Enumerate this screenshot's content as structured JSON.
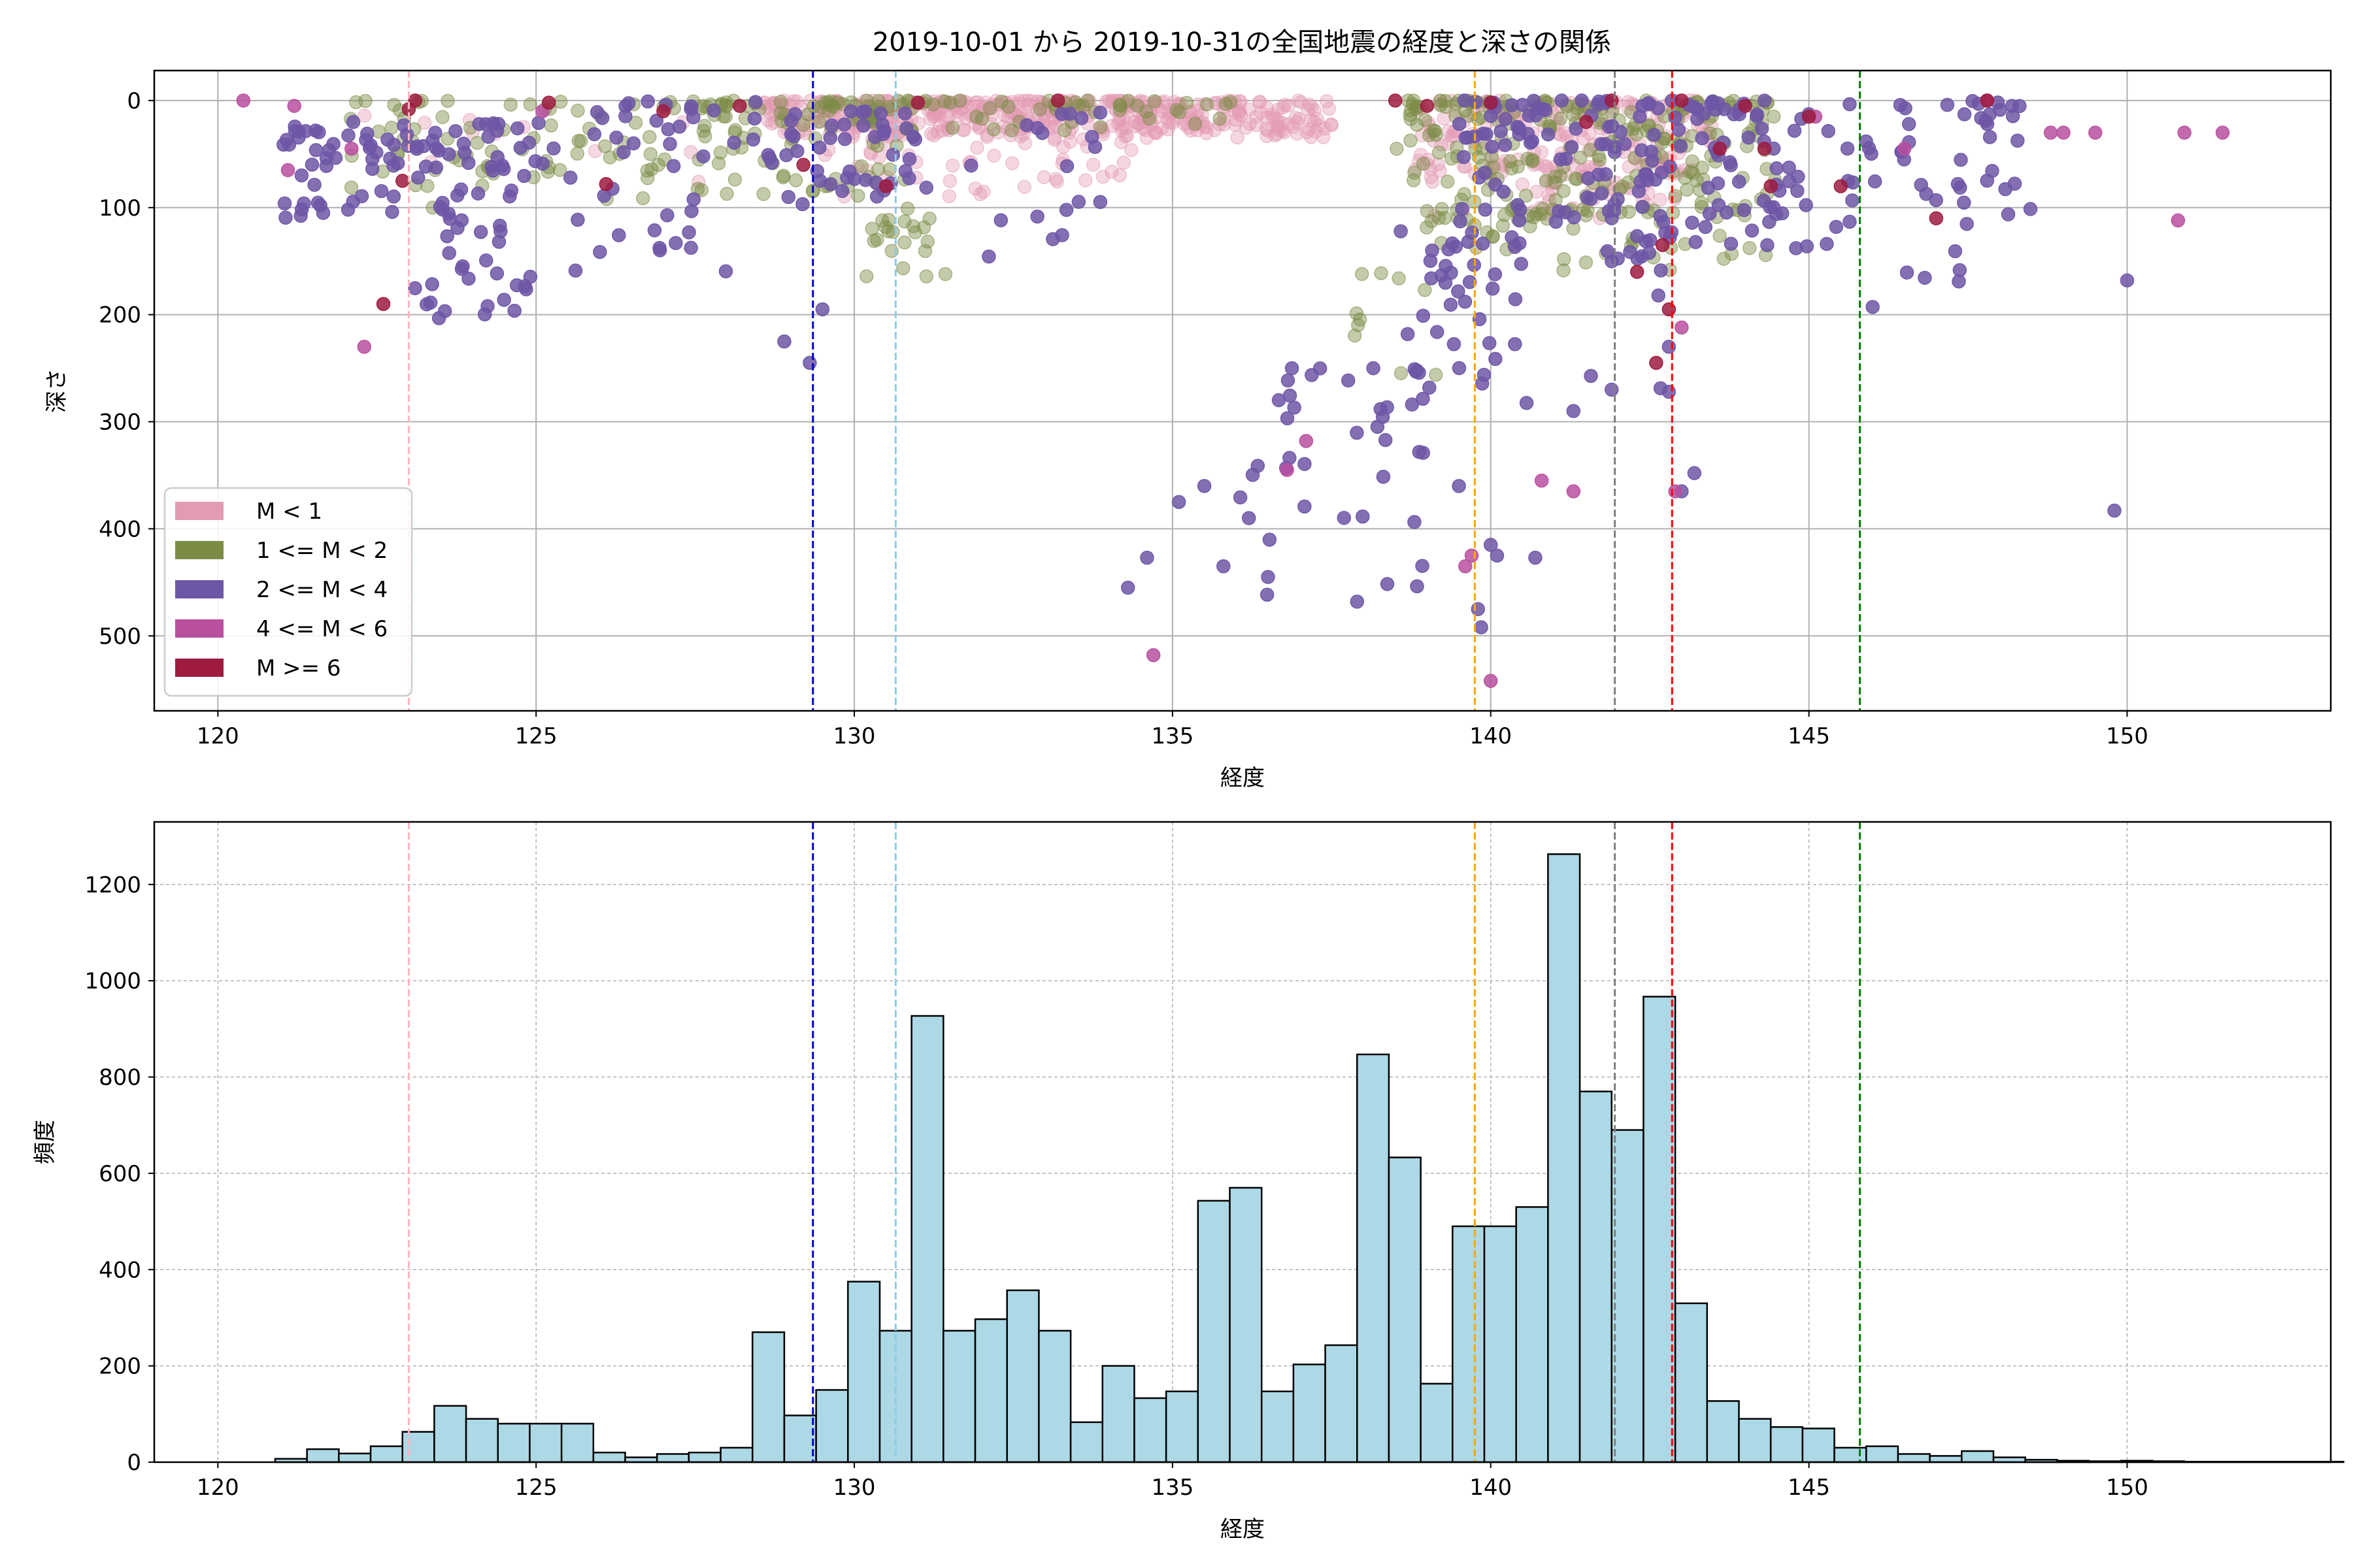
{
  "figure_title": "2019-10-01 から 2019-10-31の全国地震の経度と深さの関係",
  "colors": {
    "m_lt1": "#e39ab4",
    "m_1_2": "#7b8c45",
    "m_2_4": "#6e56a6",
    "m_4_6": "#b94f9f",
    "m_ge6": "#9e1b3f",
    "bar_fill": "#add8e6",
    "bar_edge": "#000000"
  },
  "chart_data": [
    {
      "type": "scatter",
      "title": "2019-10-01 から 2019-10-31の全国地震の経度と深さの関係",
      "xlabel": "経度",
      "ylabel": "深さ",
      "xlim": [
        119,
        153.2
      ],
      "ylim": [
        570,
        -28
      ],
      "y_inverted": true,
      "grid": true,
      "xticks": [
        120,
        125,
        130,
        135,
        140,
        145,
        150
      ],
      "yticks": [
        0,
        100,
        200,
        300,
        400,
        500
      ],
      "legend_position": "lower-left",
      "legend": [
        {
          "label": "M < 1",
          "color_key": "m_lt1"
        },
        {
          "label": "1 <= M < 2",
          "color_key": "m_1_2"
        },
        {
          "label": "2 <= M < 4",
          "color_key": "m_2_4"
        },
        {
          "label": "4 <= M < 6",
          "color_key": "m_4_6"
        },
        {
          "label": "M >= 6",
          "color_key": "m_ge6"
        }
      ],
      "vlines": [
        {
          "x": 123.0,
          "color": "#ffb6c1"
        },
        {
          "x": 129.35,
          "color": "#0000cd"
        },
        {
          "x": 130.65,
          "color": "#87ceeb"
        },
        {
          "x": 139.75,
          "color": "#ffa500"
        },
        {
          "x": 141.95,
          "color": "#808080"
        },
        {
          "x": 142.85,
          "color": "#ff0000"
        },
        {
          "x": 145.8,
          "color": "#008000"
        }
      ],
      "series": [
        {
          "name": "M < 1",
          "color_key": "m_lt1",
          "clusters": [
            {
              "x": [
                128.5,
                137.5
              ],
              "y": [
                0,
                35
              ],
              "n": 450
            },
            {
              "x": [
                129.5,
                134.5
              ],
              "y": [
                20,
                90
              ],
              "n": 70
            },
            {
              "x": [
                138.8,
                143.5
              ],
              "y": [
                0,
                70
              ],
              "n": 170
            },
            {
              "x": [
                139,
                143
              ],
              "y": [
                60,
                110
              ],
              "n": 60
            },
            {
              "x": [
                122,
                128
              ],
              "y": [
                10,
                80
              ],
              "n": 12
            }
          ],
          "points": []
        },
        {
          "name": "1 <= M < 2",
          "color_key": "m_1_2",
          "clusters": [
            {
              "x": [
                122,
                128.5
              ],
              "y": [
                0,
                100
              ],
              "n": 90
            },
            {
              "x": [
                127.5,
                131
              ],
              "y": [
                0,
                90
              ],
              "n": 90
            },
            {
              "x": [
                130.1,
                131.5
              ],
              "y": [
                100,
                170
              ],
              "n": 22
            },
            {
              "x": [
                131,
                136
              ],
              "y": [
                0,
                30
              ],
              "n": 45
            },
            {
              "x": [
                138.5,
                144.5
              ],
              "y": [
                0,
                120
              ],
              "n": 220
            },
            {
              "x": [
                139,
                144.5
              ],
              "y": [
                100,
                160
              ],
              "n": 45
            },
            {
              "x": [
                137.8,
                139.3
              ],
              "y": [
                150,
                300
              ],
              "n": 10
            }
          ],
          "points": []
        },
        {
          "name": "2 <= M < 4",
          "color_key": "m_2_4",
          "clusters": [
            {
              "x": [
                121,
                125
              ],
              "y": [
                20,
                110
              ],
              "n": 90
            },
            {
              "x": [
                123,
                125
              ],
              "y": [
                110,
                205
              ],
              "n": 28
            },
            {
              "x": [
                125,
                129
              ],
              "y": [
                0,
                160
              ],
              "n": 50
            },
            {
              "x": [
                129,
                131
              ],
              "y": [
                10,
                100
              ],
              "n": 40
            },
            {
              "x": [
                131,
                134
              ],
              "y": [
                10,
                150
              ],
              "n": 20
            },
            {
              "x": [
                136,
                139
              ],
              "y": [
                250,
                470
              ],
              "n": 40
            },
            {
              "x": [
                138.5,
                140.5
              ],
              "y": [
                120,
                270
              ],
              "n": 35
            },
            {
              "x": [
                139.5,
                145
              ],
              "y": [
                0,
                140
              ],
              "n": 170
            },
            {
              "x": [
                140.5,
                142.8
              ],
              "y": [
                140,
                290
              ],
              "n": 12
            },
            {
              "x": [
                145,
                148.5
              ],
              "y": [
                0,
                200
              ],
              "n": 55
            }
          ],
          "points": [
            [
              128.9,
              225
            ],
            [
              129.3,
              245
            ],
            [
              129.5,
              195
            ],
            [
              134.3,
              455
            ],
            [
              134.6,
              427
            ],
            [
              135.1,
              375
            ],
            [
              135.5,
              360
            ],
            [
              135.8,
              435
            ],
            [
              136.2,
              390
            ],
            [
              136.5,
              445
            ],
            [
              137.9,
              468
            ],
            [
              139.5,
              360
            ],
            [
              140.0,
              415
            ],
            [
              140.1,
              425
            ],
            [
              139.8,
              475
            ],
            [
              139.85,
              492
            ],
            [
              140.7,
              427
            ],
            [
              141.3,
              290
            ],
            [
              141.9,
              270
            ],
            [
              143.2,
              348
            ],
            [
              143.0,
              365
            ],
            [
              142.8,
              272
            ],
            [
              142.8,
              230
            ],
            [
              149.8,
              383
            ],
            [
              150.0,
              168
            ]
          ]
        },
        {
          "name": "4 <= M < 6",
          "color_key": "m_4_6",
          "clusters": [],
          "points": [
            [
              120.4,
              0
            ],
            [
              121.1,
              65
            ],
            [
              121.2,
              5
            ],
            [
              122.3,
              230
            ],
            [
              122.1,
              45
            ],
            [
              125.1,
              10
            ],
            [
              134.7,
              518
            ],
            [
              136.8,
              345
            ],
            [
              137.1,
              318
            ],
            [
              139.6,
              435
            ],
            [
              139.7,
              425
            ],
            [
              140.0,
              542
            ],
            [
              140.8,
              355
            ],
            [
              141.3,
              365
            ],
            [
              142.9,
              365
            ],
            [
              143.0,
              212
            ],
            [
              147.8,
              0
            ],
            [
              148.8,
              30
            ],
            [
              149.0,
              30
            ],
            [
              149.5,
              30
            ],
            [
              150.8,
              112
            ],
            [
              150.9,
              30
            ],
            [
              151.5,
              30
            ],
            [
              145.1,
              15
            ],
            [
              146.5,
              45
            ]
          ]
        },
        {
          "name": "M >= 6",
          "color_key": "m_ge6",
          "clusters": [],
          "points": [
            [
              122.6,
              190
            ],
            [
              122.9,
              75
            ],
            [
              123.0,
              8
            ],
            [
              123.1,
              0
            ],
            [
              125.2,
              2
            ],
            [
              126.1,
              78
            ],
            [
              127.0,
              10
            ],
            [
              128.2,
              5
            ],
            [
              129.2,
              60
            ],
            [
              130.5,
              80
            ],
            [
              131.0,
              2
            ],
            [
              133.2,
              0
            ],
            [
              138.5,
              0
            ],
            [
              139.0,
              5
            ],
            [
              140.0,
              2
            ],
            [
              141.5,
              20
            ],
            [
              141.9,
              0
            ],
            [
              142.3,
              160
            ],
            [
              142.6,
              245
            ],
            [
              142.7,
              135
            ],
            [
              142.8,
              195
            ],
            [
              143.0,
              0
            ],
            [
              143.6,
              45
            ],
            [
              144.0,
              5
            ],
            [
              144.3,
              45
            ],
            [
              144.4,
              80
            ],
            [
              145.0,
              15
            ],
            [
              145.5,
              80
            ],
            [
              147.0,
              110
            ],
            [
              147.8,
              0
            ]
          ]
        }
      ]
    },
    {
      "type": "bar",
      "subtype": "histogram",
      "xlabel": "経度",
      "ylabel": "頻度",
      "xlim": [
        119,
        153.2
      ],
      "ylim": [
        0,
        1330
      ],
      "grid": true,
      "xticks": [
        120,
        125,
        130,
        135,
        140,
        145,
        150
      ],
      "yticks": [
        0,
        200,
        400,
        600,
        800,
        1000,
        1200
      ],
      "bin_start": 120.4,
      "bin_width": 0.5,
      "values": [
        0,
        7,
        27,
        18,
        33,
        63,
        117,
        90,
        80,
        80,
        80,
        20,
        10,
        17,
        20,
        30,
        270,
        97,
        150,
        375,
        273,
        927,
        273,
        297,
        357,
        273,
        83,
        200,
        133,
        147,
        543,
        570,
        147,
        203,
        243,
        847,
        633,
        163,
        490,
        490,
        530,
        1263,
        770,
        690,
        967,
        330,
        127,
        90,
        73,
        70,
        30,
        33,
        17,
        13,
        23,
        10,
        5,
        3,
        2,
        3,
        2,
        1,
        1,
        1,
        1,
        1
      ],
      "vlines": [
        {
          "x": 123.0,
          "color": "#ffb6c1"
        },
        {
          "x": 129.35,
          "color": "#0000cd"
        },
        {
          "x": 130.65,
          "color": "#87ceeb"
        },
        {
          "x": 139.75,
          "color": "#ffa500"
        },
        {
          "x": 141.95,
          "color": "#808080"
        },
        {
          "x": 142.85,
          "color": "#ff0000"
        },
        {
          "x": 145.8,
          "color": "#008000"
        }
      ]
    }
  ]
}
